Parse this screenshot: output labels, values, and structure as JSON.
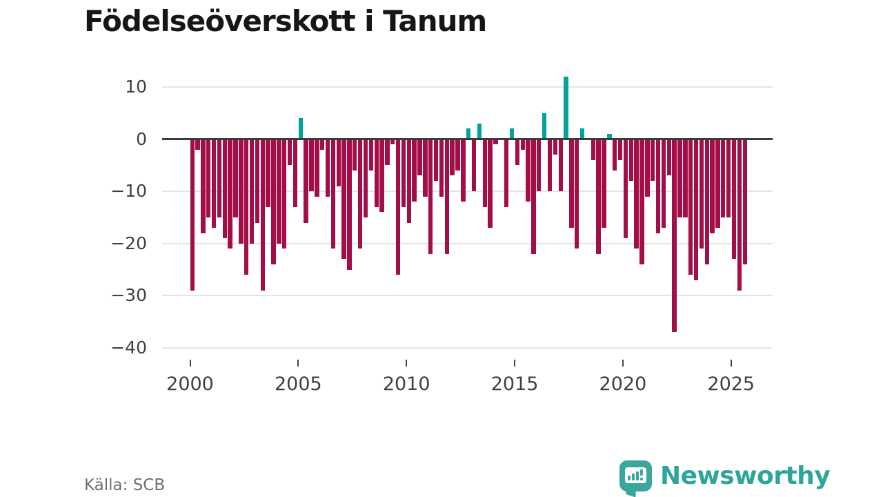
{
  "title": "Födelseöverskott i Tanum",
  "source": "Källa: SCB",
  "logo": {
    "text": "Newsworthy"
  },
  "colors": {
    "negative_bar": "#a30e49",
    "positive_bar": "#00a49a",
    "zero_line": "#3b3b3b",
    "gridline": "#e4e4e4",
    "logo_teal": "#3ba79c"
  },
  "chart_data": {
    "type": "bar",
    "title": "Födelseöverskott i Tanum",
    "x_period": "quarterly",
    "x_start": "2000-Q1",
    "x_end": "2025-Q3",
    "ylim": [
      -40,
      12
    ],
    "grid": "horizontal",
    "yticks": [
      {
        "value": 10,
        "label": "10"
      },
      {
        "value": 0,
        "label": "0"
      },
      {
        "value": -10,
        "label": "−10"
      },
      {
        "value": -20,
        "label": "−20"
      },
      {
        "value": -30,
        "label": "−30"
      },
      {
        "value": -40,
        "label": "−40"
      }
    ],
    "xticks": [
      {
        "value": 2000,
        "label": "2000"
      },
      {
        "value": 2005,
        "label": "2005"
      },
      {
        "value": 2010,
        "label": "2010"
      },
      {
        "value": 2015,
        "label": "2015"
      },
      {
        "value": 2020,
        "label": "2020"
      },
      {
        "value": 2025,
        "label": "2025"
      }
    ],
    "values": [
      -29,
      -2,
      -18,
      -15,
      -17,
      -15,
      -19,
      -21,
      -15,
      -20,
      -26,
      -20,
      -16,
      -29,
      -13,
      -24,
      -20,
      -21,
      -5,
      -13,
      4,
      -16,
      -10,
      -11,
      -2,
      -11,
      -21,
      -9,
      -23,
      -25,
      -6,
      -21,
      -15,
      -6,
      -13,
      -14,
      -5,
      -1,
      -26,
      -13,
      -16,
      -12,
      -7,
      -11,
      -22,
      -8,
      -11,
      -22,
      -7,
      -6,
      -12,
      2,
      -10,
      3,
      -13,
      -17,
      -1,
      0,
      -13,
      2,
      -5,
      -2,
      -12,
      -22,
      -10,
      5,
      -10,
      -3,
      -10,
      12,
      -17,
      -21,
      2,
      0,
      -4,
      -22,
      -17,
      1,
      -6,
      -4,
      -19,
      -8,
      -21,
      -24,
      -11,
      -8,
      -18,
      -17,
      -7,
      -37,
      -15,
      -15,
      -26,
      -27,
      -21,
      -24,
      -18,
      -17,
      -15,
      -15,
      -23,
      -29,
      -24
    ]
  }
}
